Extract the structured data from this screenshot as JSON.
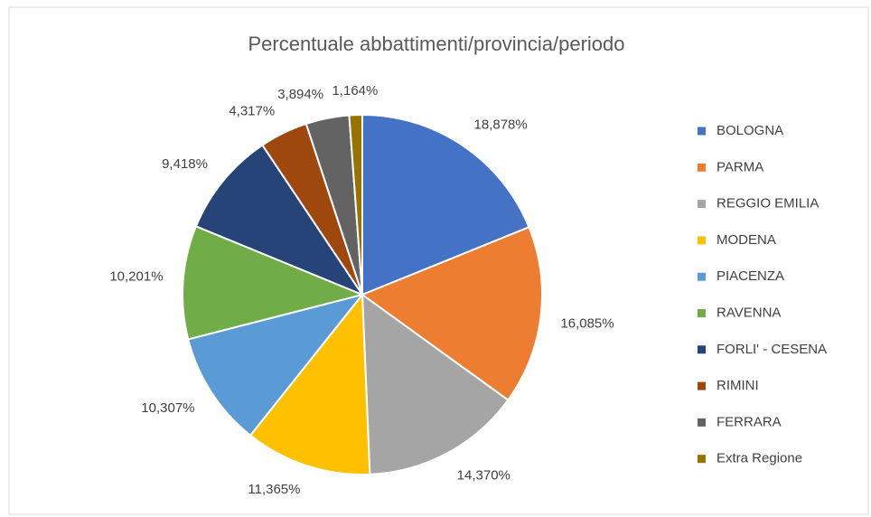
{
  "chart_data": {
    "type": "pie",
    "title": "Percentuale abbattimenti/provincia/periodo",
    "categories": [
      "BOLOGNA",
      "PARMA",
      "REGGIO EMILIA",
      "MODENA",
      "PIACENZA",
      "RAVENNA",
      "FORLI' - CESENA",
      "RIMINI",
      "FERRARA",
      "Extra Regione"
    ],
    "values": [
      18.878,
      16.085,
      14.37,
      11.365,
      10.307,
      10.201,
      9.418,
      4.317,
      3.894,
      1.164
    ],
    "value_labels": [
      "18,878%",
      "16,085%",
      "14,370%",
      "11,365%",
      "10,307%",
      "10,201%",
      "9,418%",
      "4,317%",
      "3,894%",
      "1,164%"
    ],
    "colors": [
      "#4472c4",
      "#ed7d31",
      "#a5a5a5",
      "#ffc000",
      "#5b9bd5",
      "#70ad47",
      "#264478",
      "#9e480e",
      "#636363",
      "#997300"
    ],
    "legend": "right"
  }
}
